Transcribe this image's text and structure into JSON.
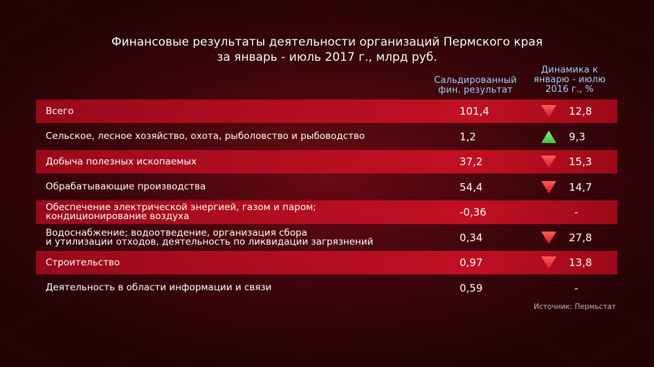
{
  "title_line1": "Финансовые результаты деятельности организаций Пермского края",
  "title_line2": "за январь - июль 2017 г., млрд руб.",
  "columns": {
    "saldo": "Сальдированный\nфин. результат",
    "dynamics": "Динамика к\nянварю - июлю\n2016 г., %"
  },
  "colors": {
    "up": "#3cc23c",
    "down": "#d41a24",
    "header": "#9fd1ff"
  },
  "chart_data": {
    "type": "table",
    "title": "Финансовые результаты деятельности организаций Пермского края за январь - июль 2017 г., млрд руб.",
    "columns": [
      "Сальдированный фин. результат",
      "Динамика к январю - июлю 2016 г., %"
    ],
    "rows": [
      {
        "name": "Всего",
        "saldo": "101,4",
        "dynamics": "12,8",
        "trend": "down"
      },
      {
        "name": "Сельское, лесное хозяйство, охота, рыболовство и рыбоводство",
        "saldo": "1,2",
        "dynamics": "9,3",
        "trend": "up"
      },
      {
        "name": "Добыча полезных ископаемых",
        "saldo": "37,2",
        "dynamics": "15,3",
        "trend": "down"
      },
      {
        "name": "Обрабатывающие производства",
        "saldo": "54,4",
        "dynamics": "14,7",
        "trend": "down"
      },
      {
        "name": "Обеспечение электрической энергией, газом и паром;\nкондиционирование воздуха",
        "saldo": "-0,36",
        "dynamics": "-",
        "trend": "none"
      },
      {
        "name": "Водоснабжение; водоотведение, организация сбора\nи утилизации отходов, деятельность по ликвидации загрязнений",
        "saldo": "0,34",
        "dynamics": "27,8",
        "trend": "down"
      },
      {
        "name": "Строительство",
        "saldo": "0,97",
        "dynamics": "13,8",
        "trend": "down"
      },
      {
        "name": "Деятельность в области информации и связи",
        "saldo": "0,59",
        "dynamics": "-",
        "trend": "none"
      }
    ]
  },
  "source": "Источник: Пермьстат"
}
